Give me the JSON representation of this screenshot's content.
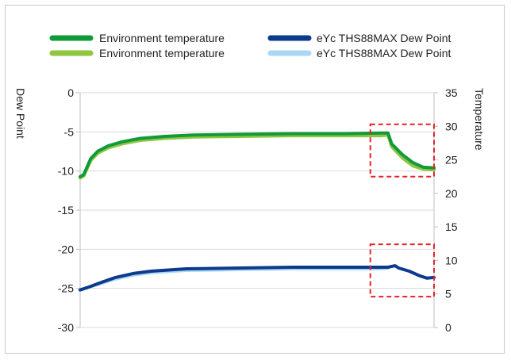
{
  "chart_data": {
    "type": "line",
    "legend": {
      "placement": "top",
      "entries": [
        {
          "label": "Environment temperature",
          "color": "#119a3a"
        },
        {
          "label": "eYc THS88MAX Dew Point",
          "color": "#0c3a8c"
        },
        {
          "label": "Environment temperature",
          "color": "#8fc63f"
        },
        {
          "label": "eYc THS88MAX Dew Point",
          "color": "#a9d8f5"
        }
      ]
    },
    "y_left": {
      "label": "Dew Point",
      "range": [
        -30,
        0
      ],
      "ticks": [
        "0",
        "-5",
        "-10",
        "-15",
        "-20",
        "-25",
        "-30"
      ]
    },
    "y_right": {
      "label": "Temperature",
      "range": [
        0,
        35
      ],
      "ticks": [
        "35",
        "30",
        "25",
        "20",
        "15",
        "10",
        "5",
        "0"
      ]
    },
    "grid": "horizontal",
    "series": [
      {
        "name": "Environment temperature",
        "axis": "right",
        "color": "#8fc63f",
        "points": [
          [
            0,
            22.3
          ],
          [
            1,
            22.6
          ],
          [
            3,
            24.9
          ],
          [
            5,
            26.0
          ],
          [
            8,
            26.8
          ],
          [
            12,
            27.4
          ],
          [
            17,
            27.9
          ],
          [
            24,
            28.2
          ],
          [
            32,
            28.4
          ],
          [
            45,
            28.5
          ],
          [
            60,
            28.6
          ],
          [
            75,
            28.6
          ],
          [
            85,
            28.6
          ],
          [
            87,
            28.7
          ],
          [
            88,
            27.0
          ],
          [
            91,
            25.3
          ],
          [
            94,
            24.1
          ],
          [
            97,
            23.6
          ],
          [
            100,
            23.5
          ]
        ]
      },
      {
        "name": "Environment temperature",
        "axis": "right",
        "color": "#119a3a",
        "points": [
          [
            0,
            22.5
          ],
          [
            1,
            22.8
          ],
          [
            3,
            25.2
          ],
          [
            5,
            26.3
          ],
          [
            8,
            27.1
          ],
          [
            12,
            27.7
          ],
          [
            17,
            28.2
          ],
          [
            24,
            28.5
          ],
          [
            32,
            28.7
          ],
          [
            45,
            28.8
          ],
          [
            60,
            28.9
          ],
          [
            75,
            28.9
          ],
          [
            85,
            29.0
          ],
          [
            87,
            29.0
          ],
          [
            88,
            27.4
          ],
          [
            91,
            25.8
          ],
          [
            94,
            24.6
          ],
          [
            97,
            23.9
          ],
          [
            100,
            23.8
          ]
        ]
      },
      {
        "name": "eYc THS88MAX Dew Point",
        "axis": "left",
        "color": "#a9d8f5",
        "points": [
          [
            0,
            -25.2
          ],
          [
            2,
            -24.9
          ],
          [
            5,
            -24.5
          ],
          [
            10,
            -23.8
          ],
          [
            15,
            -23.3
          ],
          [
            20,
            -23.0
          ],
          [
            30,
            -22.7
          ],
          [
            45,
            -22.6
          ],
          [
            60,
            -22.5
          ],
          [
            75,
            -22.5
          ],
          [
            85,
            -22.5
          ],
          [
            87,
            -22.4
          ]
        ]
      },
      {
        "name": "eYc THS88MAX Dew Point",
        "axis": "left",
        "color": "#0c3a8c",
        "points": [
          [
            0,
            -25.2
          ],
          [
            2,
            -24.9
          ],
          [
            5,
            -24.4
          ],
          [
            10,
            -23.6
          ],
          [
            15,
            -23.1
          ],
          [
            20,
            -22.8
          ],
          [
            30,
            -22.5
          ],
          [
            45,
            -22.4
          ],
          [
            60,
            -22.3
          ],
          [
            75,
            -22.3
          ],
          [
            85,
            -22.3
          ],
          [
            87,
            -22.3
          ],
          [
            89,
            -22.1
          ],
          [
            90,
            -22.4
          ],
          [
            93,
            -22.8
          ],
          [
            96,
            -23.4
          ],
          [
            98,
            -23.7
          ],
          [
            100,
            -23.6
          ]
        ]
      }
    ],
    "highlight_boxes": [
      {
        "axis": "right",
        "x_range": [
          82,
          100
        ],
        "y_range": [
          22.5,
          30.3
        ]
      },
      {
        "axis": "right",
        "x_range": [
          82,
          100
        ],
        "y_range": [
          4.6,
          12.4
        ]
      }
    ]
  }
}
